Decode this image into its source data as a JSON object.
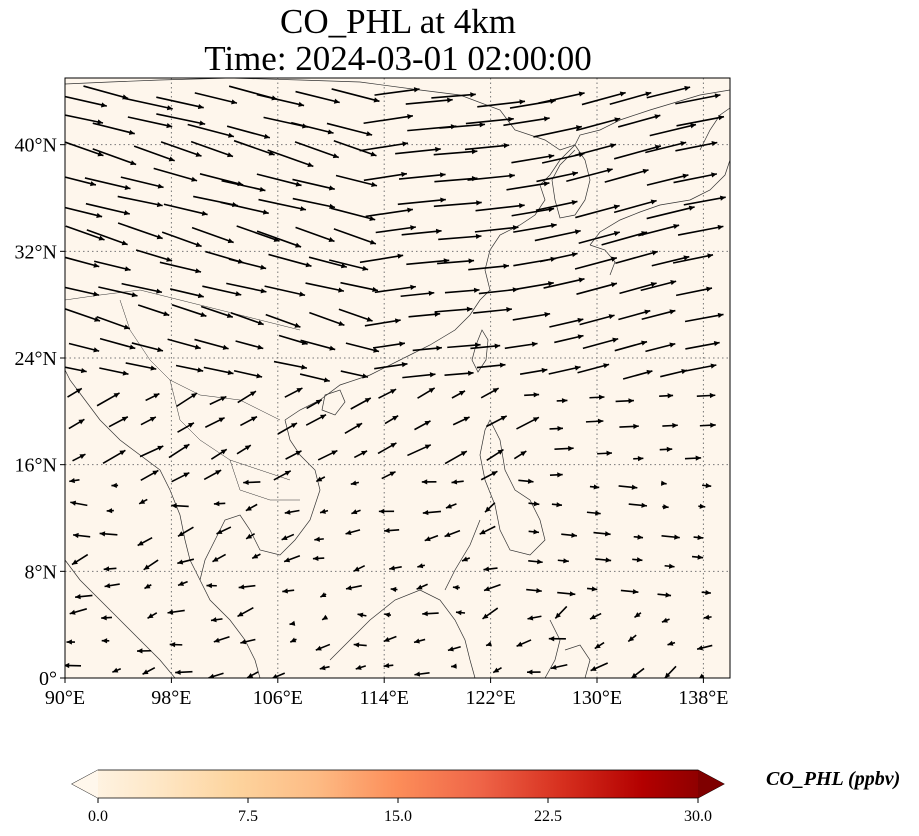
{
  "title_line1": "CO_PHL at 4km",
  "title_line2": "Time: 2024-03-01 02:00:00",
  "map": {
    "lon_range": [
      90,
      140
    ],
    "lat_range": [
      0,
      45
    ],
    "gridlines": true,
    "lon_ticks": [
      "90°E",
      "98°E",
      "106°E",
      "114°E",
      "122°E",
      "130°E",
      "138°E"
    ],
    "lat_ticks": [
      "0°",
      "8°N",
      "16°N",
      "24°N",
      "32°N",
      "40°N"
    ],
    "field_color": "#fef6ec",
    "vector_field": "wind arrows"
  },
  "colorbar": {
    "label": "CO_PHL (ppbv)",
    "ticks": [
      "0.0",
      "7.5",
      "15.0",
      "22.5",
      "30.0"
    ],
    "range": [
      0,
      30
    ],
    "colormap": [
      "#fff7ec",
      "#fee8c8",
      "#fdd49e",
      "#fdbb84",
      "#fc8d59",
      "#ef6548",
      "#d7301f",
      "#b30000",
      "#7f0000"
    ]
  }
}
